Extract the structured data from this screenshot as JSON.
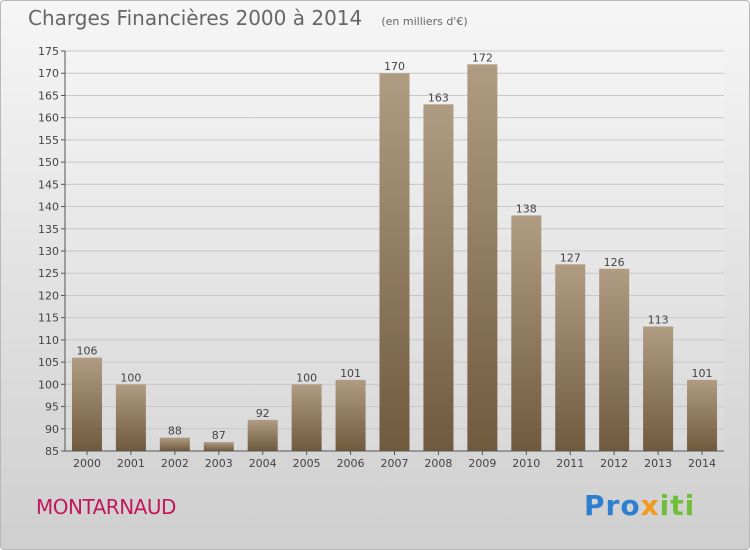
{
  "chart_data": {
    "type": "bar",
    "title": "Charges Financières 2000 à 2014",
    "subtitle": "(en milliers d'€)",
    "categories": [
      "2000",
      "2001",
      "2002",
      "2003",
      "2004",
      "2005",
      "2006",
      "2007",
      "2008",
      "2009",
      "2010",
      "2011",
      "2012",
      "2013",
      "2014"
    ],
    "values": [
      106,
      100,
      88,
      87,
      92,
      100,
      101,
      170,
      163,
      172,
      138,
      127,
      126,
      113,
      101
    ],
    "ylim": [
      85,
      175
    ],
    "yticks": [
      85,
      90,
      95,
      100,
      105,
      110,
      115,
      120,
      125,
      130,
      135,
      140,
      145,
      150,
      155,
      160,
      165,
      170,
      175
    ],
    "grid": true,
    "bar_color_top": "#b09c82",
    "bar_color_bottom": "#6f5a3e",
    "data_labels": true
  },
  "footer": {
    "commune": "MONTARNAUD",
    "brand_parts": [
      "Pro",
      "x",
      "iti"
    ]
  },
  "colors": {
    "commune": "#c2185b",
    "brand_1": "#2f7fd0",
    "brand_2": "#f39a1e",
    "brand_3": "#6fbf3a"
  }
}
